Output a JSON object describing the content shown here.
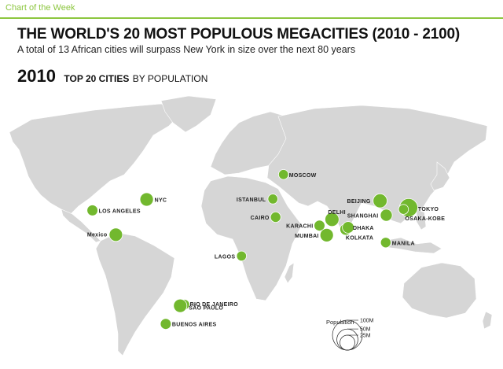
{
  "header": {
    "tag": "Chart of the Week"
  },
  "title": "THE WORLD'S 20 MOST POPULOUS MEGACITIES (2010 - 2100)",
  "subtitle": "A total of 13 African cities will surpass New York in size over the next 80 years",
  "section": {
    "year": "2010",
    "heading_bold": "TOP 20 CITIES",
    "heading_light": "BY POPULATION"
  },
  "colors": {
    "dot": "#72b82e",
    "land": "#d6d6d6",
    "accent": "#8cc63f"
  },
  "cities": [
    {
      "name": "LOS ANGELES",
      "lon": -118.2,
      "lat": 34.1,
      "pop": 13
    },
    {
      "name": "NYC",
      "lon": -74.0,
      "lat": 40.7,
      "pop": 20
    },
    {
      "name": "Mexico",
      "lon": -99.1,
      "lat": 19.4,
      "pop": 20
    },
    {
      "name": "RIO DE JANEIRO",
      "lon": -43.2,
      "lat": -22.9,
      "pop": 12
    },
    {
      "name": "SÃO PAULO",
      "lon": -46.6,
      "lat": -23.6,
      "pop": 20
    },
    {
      "name": "BUENOS AIRES",
      "lon": -58.4,
      "lat": -34.6,
      "pop": 13
    },
    {
      "name": "LAGOS",
      "lon": 3.4,
      "lat": 6.5,
      "pop": 11
    },
    {
      "name": "CAIRO",
      "lon": 31.2,
      "lat": 30.0,
      "pop": 12
    },
    {
      "name": "ISTANBUL",
      "lon": 29.0,
      "lat": 41.0,
      "pop": 11
    },
    {
      "name": "MOSCOW",
      "lon": 37.6,
      "lat": 55.8,
      "pop": 11
    },
    {
      "name": "KARACHI",
      "lon": 67.0,
      "lat": 24.9,
      "pop": 13
    },
    {
      "name": "DELHI",
      "lon": 77.2,
      "lat": 28.6,
      "pop": 22
    },
    {
      "name": "MUMBAI",
      "lon": 72.9,
      "lat": 19.1,
      "pop": 20
    },
    {
      "name": "KOLKATA",
      "lon": 88.4,
      "lat": 22.6,
      "pop": 15
    },
    {
      "name": "DHAKA",
      "lon": 90.4,
      "lat": 23.8,
      "pop": 15
    },
    {
      "name": "BEIJING",
      "lon": 116.4,
      "lat": 39.9,
      "pop": 22
    },
    {
      "name": "SHANGHAI",
      "lon": 121.5,
      "lat": 31.2,
      "pop": 16
    },
    {
      "name": "TOKYO",
      "lon": 139.7,
      "lat": 35.7,
      "pop": 37
    },
    {
      "name": "OSAKA-KOBE",
      "lon": 135.5,
      "lat": 34.7,
      "pop": 11
    },
    {
      "name": "MANILA",
      "lon": 121.0,
      "lat": 14.6,
      "pop": 12
    }
  ],
  "legend": {
    "title": "Population",
    "items": [
      {
        "label": "100M",
        "value": 100
      },
      {
        "label": "50M",
        "value": 50
      },
      {
        "label": "25M",
        "value": 25
      }
    ]
  }
}
